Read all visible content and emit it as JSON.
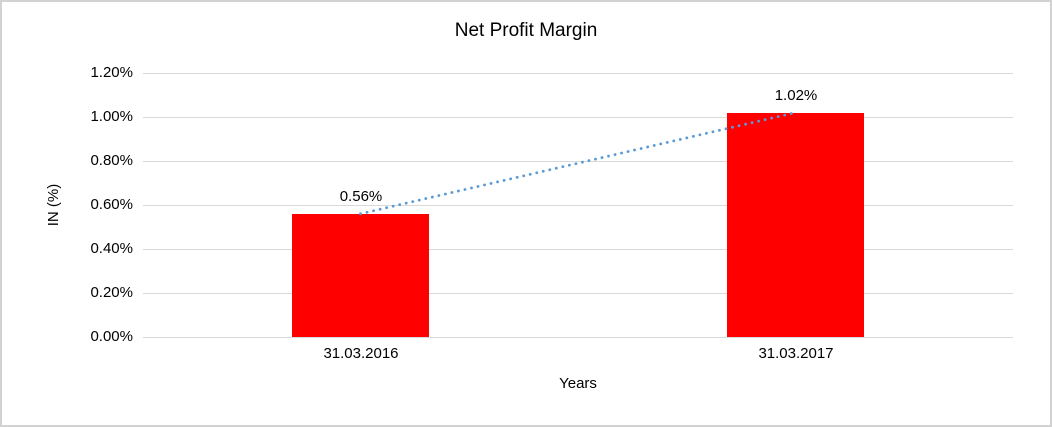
{
  "window": {
    "background": "#ffffff",
    "border_color": "#d2d2d2"
  },
  "chart_data": {
    "type": "bar",
    "title": "Net Profit Margin",
    "xlabel": "Years",
    "ylabel": "IN (%)",
    "categories": [
      "31.03.2016",
      "31.03.2017"
    ],
    "series": [
      {
        "name": "Net Profit Margin",
        "type": "bar",
        "values": [
          0.56,
          1.02
        ],
        "color": "#ff0000"
      },
      {
        "name": "trendline",
        "type": "line",
        "values": [
          0.56,
          1.02
        ],
        "color": "#5b9bd5",
        "line_style": "dotted"
      }
    ],
    "data_labels": [
      "0.56%",
      "1.02%"
    ],
    "ylim": [
      0,
      1.2
    ],
    "ytick_values": [
      0,
      0.2,
      0.4,
      0.6,
      0.8,
      1.0,
      1.2
    ],
    "ytick_labels": [
      "0.00%",
      "0.20%",
      "0.40%",
      "0.60%",
      "0.80%",
      "1.00%",
      "1.20%"
    ],
    "grid": "horizontal",
    "gridline_color": "#d9d9d9",
    "axis_line_color": "#d9d9d9",
    "legend_position": "none",
    "text_color": "#000000"
  }
}
